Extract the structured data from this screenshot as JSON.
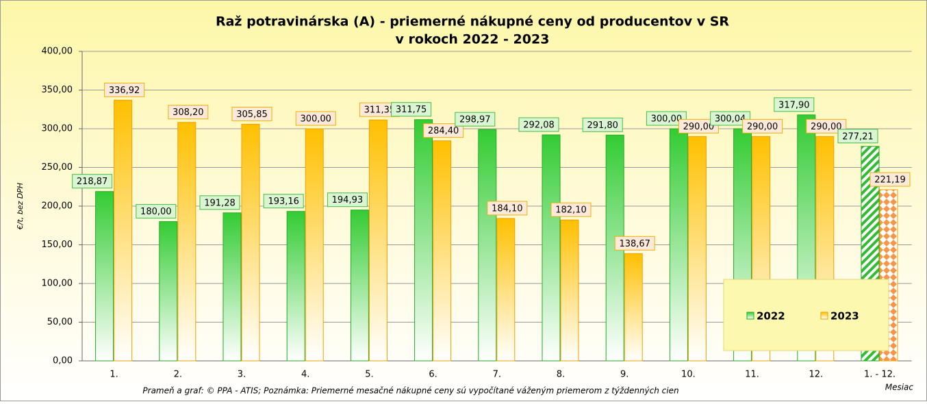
{
  "chart_data": {
    "type": "bar",
    "title": "Raž potravinárska (A) - priemerné nákupné ceny od producentov v SR",
    "subtitle": "v rokoch 2022 - 2023",
    "y_label": "€/t, bez DPH",
    "x_label": "Mesiac",
    "note": "Prameň a graf: © PPA - ATIS; Poznámka: Priemerné mesačné nákupné ceny sú vypočítané váženým priemerom z týždenných cien",
    "categories": [
      "1.",
      "2.",
      "3.",
      "4.",
      "5.",
      "6.",
      "7.",
      "8.",
      "9.",
      "10.",
      "11.",
      "12.",
      "1. - 12."
    ],
    "series": [
      {
        "name": "2022",
        "color": "#33cc33",
        "values": [
          218.87,
          180.0,
          191.28,
          193.16,
          194.93,
          311.75,
          298.97,
          292.08,
          291.8,
          300.0,
          300.04,
          317.9,
          277.21
        ],
        "value_labels": [
          "218,87",
          "180,00",
          "191,28",
          "193,16",
          "194,93",
          "311,75",
          "298,97",
          "292,08",
          "291,80",
          "300,00",
          "300,04",
          "317,90",
          "277,21"
        ]
      },
      {
        "name": "2023",
        "color": "#ffc000",
        "values": [
          336.92,
          308.2,
          305.85,
          300.0,
          311.35,
          284.4,
          184.1,
          182.1,
          138.67,
          290.0,
          290.0,
          290.0,
          221.19
        ],
        "value_labels": [
          "336,92",
          "308,20",
          "305,85",
          "300,00",
          "311,35",
          "284,40",
          "184,10",
          "182,10",
          "138,67",
          "290,00",
          "290,00",
          "290,00",
          "221,19"
        ]
      }
    ],
    "ylim": [
      0,
      400
    ],
    "yticks": [
      {
        "value": 0,
        "label": "0,00"
      },
      {
        "value": 50,
        "label": "50,00"
      },
      {
        "value": 100,
        "label": "100,00"
      },
      {
        "value": 150,
        "label": "150,00"
      },
      {
        "value": 200,
        "label": "200,00"
      },
      {
        "value": 250,
        "label": "250,00"
      },
      {
        "value": 300,
        "label": "300,00"
      },
      {
        "value": 350,
        "label": "350,00"
      },
      {
        "value": 400,
        "label": "400,00"
      }
    ],
    "grid": true,
    "legend": "lower right"
  }
}
